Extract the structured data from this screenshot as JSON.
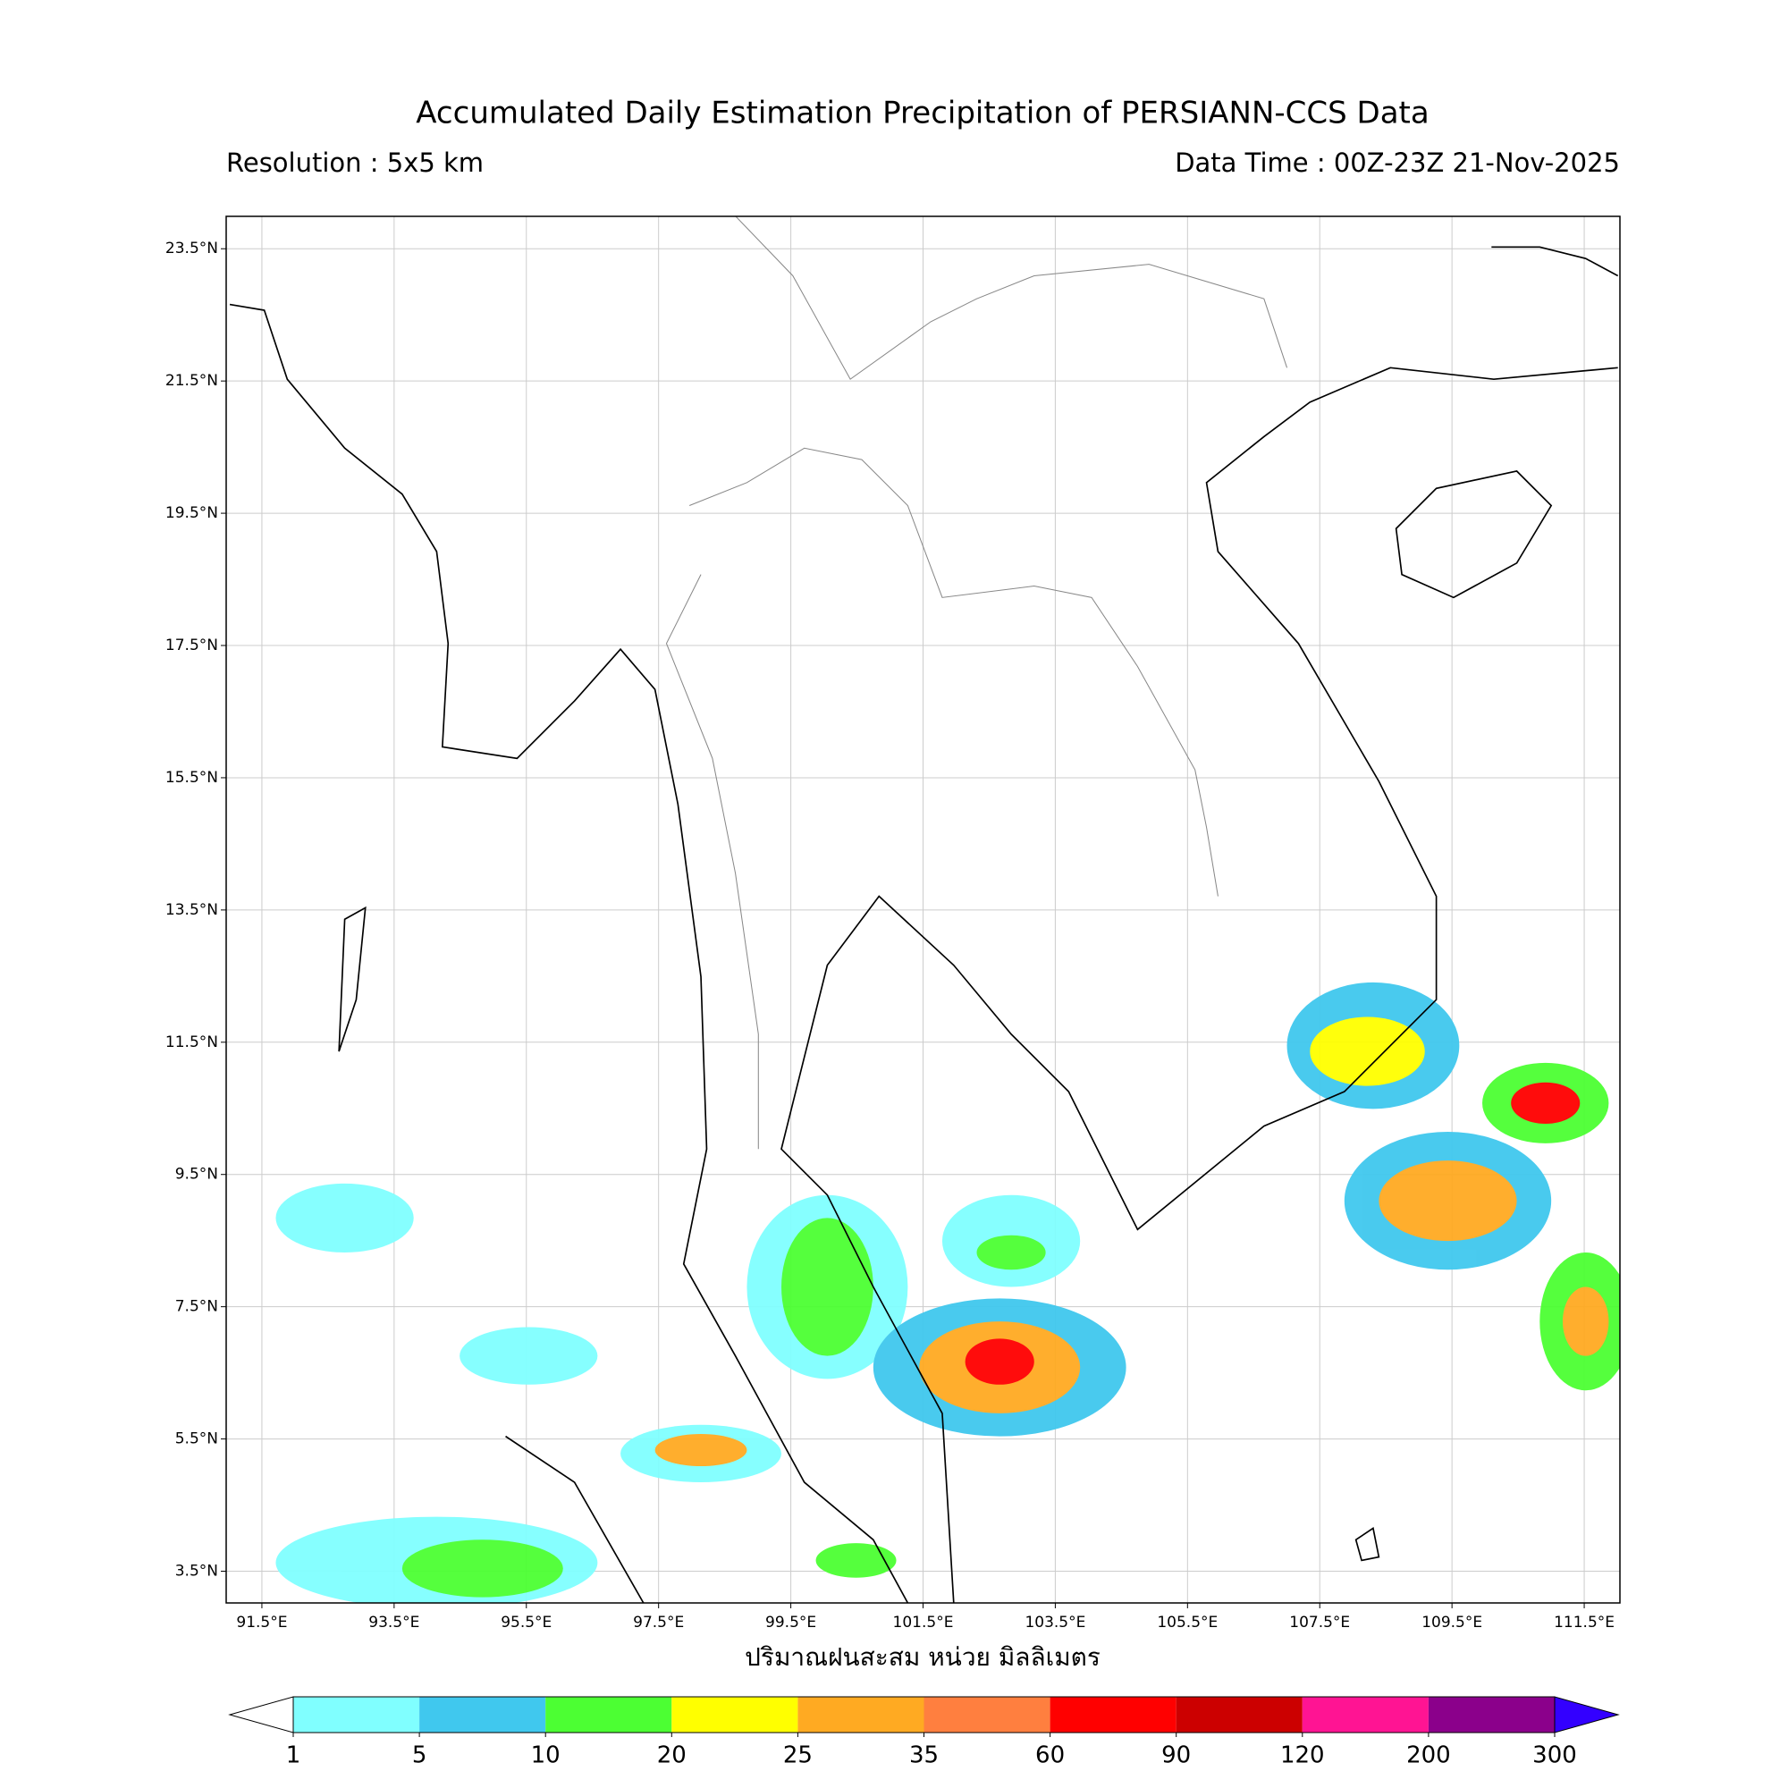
{
  "chart_data": {
    "type": "map",
    "title": "Accumulated Daily Estimation Precipitation of PERSIANN-CCS Data",
    "subtitle_left": "Resolution : 5x5 km",
    "subtitle_right": "Data Time : 00Z-23Z 21-Nov-2025",
    "xlabel": "ปริมาณฝนสะสม หน่วย มิลลิเมตร",
    "xlim": [
      90.96,
      112.04
    ],
    "ylim": [
      3.02,
      23.99
    ],
    "xticks": [
      {
        "value": 91.5,
        "label": "91.5°E"
      },
      {
        "value": 93.5,
        "label": "93.5°E"
      },
      {
        "value": 95.5,
        "label": "95.5°E"
      },
      {
        "value": 97.5,
        "label": "97.5°E"
      },
      {
        "value": 99.5,
        "label": "99.5°E"
      },
      {
        "value": 101.5,
        "label": "101.5°E"
      },
      {
        "value": 103.5,
        "label": "103.5°E"
      },
      {
        "value": 105.5,
        "label": "105.5°E"
      },
      {
        "value": 107.5,
        "label": "107.5°E"
      },
      {
        "value": 109.5,
        "label": "109.5°E"
      },
      {
        "value": 111.5,
        "label": "111.5°E"
      }
    ],
    "yticks": [
      {
        "value": 3.5,
        "label": "3.5°N"
      },
      {
        "value": 5.5,
        "label": "5.5°N"
      },
      {
        "value": 7.5,
        "label": "7.5°N"
      },
      {
        "value": 9.5,
        "label": "9.5°N"
      },
      {
        "value": 11.5,
        "label": "11.5°N"
      },
      {
        "value": 13.5,
        "label": "13.5°N"
      },
      {
        "value": 15.5,
        "label": "15.5°N"
      },
      {
        "value": 17.5,
        "label": "17.5°N"
      },
      {
        "value": 19.5,
        "label": "19.5°N"
      },
      {
        "value": 21.5,
        "label": "21.5°N"
      },
      {
        "value": 23.5,
        "label": "23.5°N"
      }
    ],
    "grid": true,
    "colorbar": {
      "levels": [
        1,
        5,
        10,
        20,
        25,
        35,
        60,
        90,
        120,
        200,
        300
      ],
      "colors": [
        "#ffffff",
        "#80ffff",
        "#40c8ee",
        "#4cff33",
        "#ffff00",
        "#ffaa22",
        "#ff7f3f",
        "#ff0000",
        "#cc0000",
        "#ff1493",
        "#8b008b",
        "#3300ff"
      ]
    }
  }
}
